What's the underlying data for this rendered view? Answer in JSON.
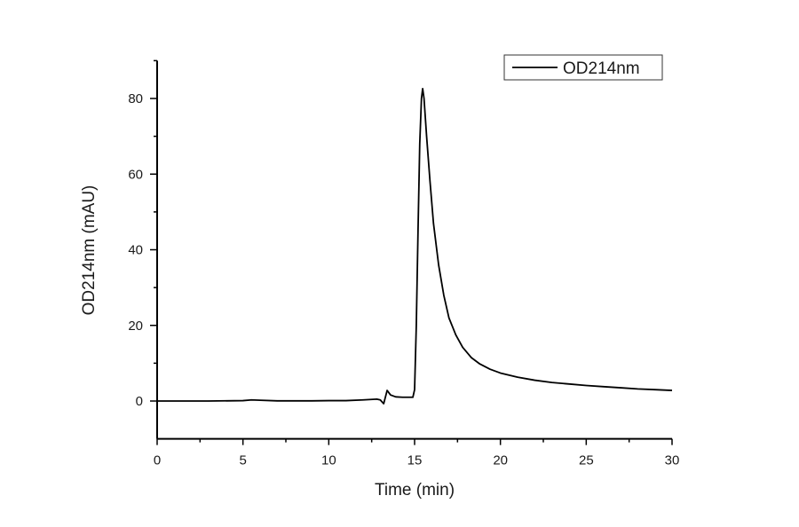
{
  "chart_data": {
    "type": "line",
    "title": "",
    "xlabel": "Time (min)",
    "ylabel": "OD214nm (mAU)",
    "xlim": [
      0,
      30
    ],
    "ylim": [
      -10,
      90
    ],
    "x_ticks": [
      0,
      5,
      10,
      15,
      20,
      25,
      30
    ],
    "y_ticks": [
      0,
      20,
      40,
      60,
      80
    ],
    "x_minor_step": 2.5,
    "y_minor_step": 10,
    "grid": false,
    "legend_position": "top-right",
    "series": [
      {
        "name": "OD214nm",
        "color": "#000000",
        "points": [
          [
            0,
            0
          ],
          [
            3,
            0
          ],
          [
            5,
            0.1
          ],
          [
            5.5,
            0.3
          ],
          [
            6,
            0.2
          ],
          [
            7,
            0.05
          ],
          [
            9,
            0.05
          ],
          [
            10,
            0.1
          ],
          [
            11,
            0.1
          ],
          [
            12,
            0.3
          ],
          [
            12.8,
            0.5
          ],
          [
            13.0,
            0.3
          ],
          [
            13.2,
            -0.7
          ],
          [
            13.4,
            2.8
          ],
          [
            13.6,
            1.6
          ],
          [
            13.9,
            1.1
          ],
          [
            14.3,
            1.0
          ],
          [
            14.9,
            1.0
          ],
          [
            15.0,
            3
          ],
          [
            15.1,
            20
          ],
          [
            15.2,
            45
          ],
          [
            15.3,
            68
          ],
          [
            15.4,
            80
          ],
          [
            15.47,
            82.6
          ],
          [
            15.55,
            80
          ],
          [
            15.7,
            70
          ],
          [
            15.9,
            58
          ],
          [
            16.1,
            47
          ],
          [
            16.4,
            36
          ],
          [
            16.7,
            28
          ],
          [
            17.0,
            22
          ],
          [
            17.4,
            17.5
          ],
          [
            17.8,
            14.2
          ],
          [
            18.3,
            11.5
          ],
          [
            18.8,
            9.8
          ],
          [
            19.4,
            8.4
          ],
          [
            20.0,
            7.4
          ],
          [
            21.0,
            6.3
          ],
          [
            22.0,
            5.5
          ],
          [
            23.0,
            4.9
          ],
          [
            24.0,
            4.5
          ],
          [
            25.0,
            4.1
          ],
          [
            26.0,
            3.8
          ],
          [
            27.0,
            3.5
          ],
          [
            28.0,
            3.2
          ],
          [
            29.0,
            3.0
          ],
          [
            30.0,
            2.8
          ]
        ]
      }
    ],
    "annotations": []
  },
  "legend": {
    "items": [
      {
        "label": "OD214nm",
        "color": "#000000"
      }
    ]
  }
}
